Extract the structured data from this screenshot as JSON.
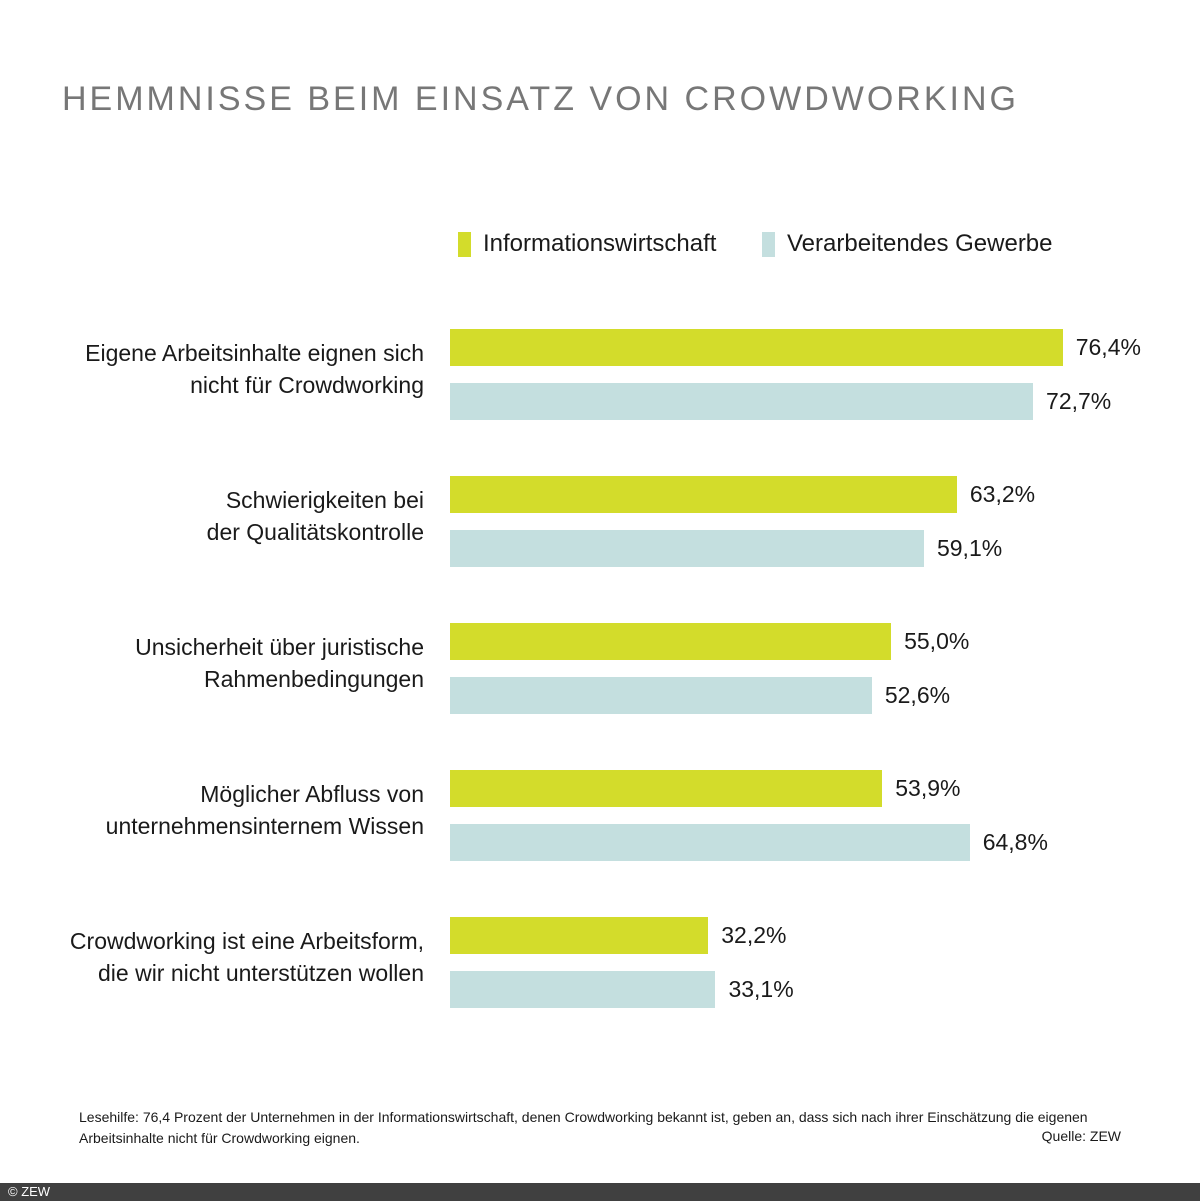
{
  "chart_data": {
    "type": "bar",
    "orientation": "horizontal",
    "title": "HEMMNISSE BEIM EINSATZ VON CROWDWORKING",
    "categories": [
      [
        "Eigene Arbeitsinhalte eignen sich",
        "nicht für Crowdworking"
      ],
      [
        "Schwierigkeiten bei",
        "der Qualitätskontrolle"
      ],
      [
        "Unsicherheit über juristische",
        "Rahmenbedingungen"
      ],
      [
        "Möglicher Abfluss von",
        "unternehmensinternem Wissen"
      ],
      [
        "Crowdworking ist eine Arbeitsform,",
        "die wir nicht unterstützen wollen"
      ]
    ],
    "series": [
      {
        "name": "Informationswirtschaft",
        "color": "#d3dc2b",
        "values": [
          76.4,
          63.2,
          55.0,
          53.9,
          32.2
        ],
        "labels": [
          "76,4%",
          "63,2%",
          "55,0%",
          "53,9%",
          "32,2%"
        ]
      },
      {
        "name": "Verarbeitendes Gewerbe",
        "color": "#c4dfdf",
        "values": [
          72.7,
          59.1,
          52.6,
          64.8,
          33.1
        ],
        "labels": [
          "72,7%",
          "59,1%",
          "52,6%",
          "64,8%",
          "33,1%"
        ]
      }
    ],
    "xlim": [
      0,
      100
    ],
    "grid": false,
    "legend": "top"
  },
  "note": "Lesehilfe: 76,4 Prozent der Unternehmen in der Informationswirtschaft, denen Crowdworking bekannt ist, geben an, dass sich nach ihrer Einschätzung die eigenen Arbeitsinhalte nicht für Crowdworking eignen.",
  "source": "Quelle: ZEW",
  "copyright": "© ZEW"
}
